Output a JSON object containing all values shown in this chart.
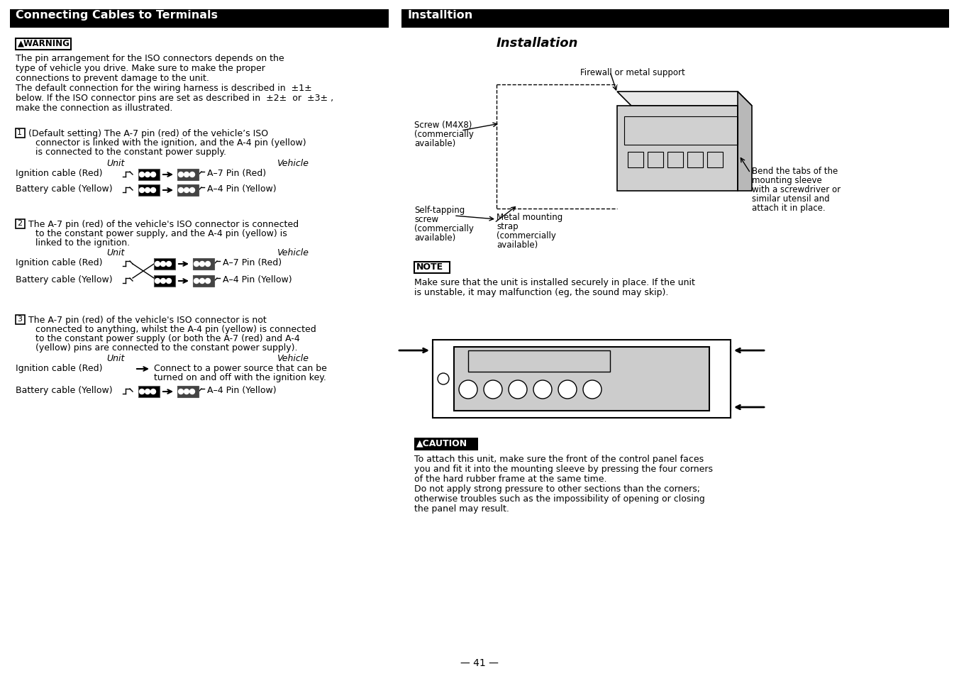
{
  "left_title": "Connecting Cables to Terminals",
  "right_title": "Installtion",
  "right_subtitle": "Installation",
  "warning_text_lines": [
    "The pin arrangement for the ISO connectors depends on the",
    "type of vehicle you drive. Make sure to make the proper",
    "connections to prevent damage to the unit.",
    "The default connection for the wiring harness is described in  ±1±",
    "below. If the ISO connector pins are set as described in  ±2±  or  ±3± ,",
    "make the connection as illustrated."
  ],
  "note_text": "Make sure that the unit is installed securely in place. If the unit\nis unstable, it may malfunction (eg, the sound may skip).",
  "caution_text": "To attach this unit, make sure the front of the control panel faces\nyou and fit it into the mounting sleeve by pressing the four corners\nof the hard rubber frame at the same time.\nDo not apply strong pressure to other sections than the corners;\notherwise troubles such as the impossibility of opening or closing\nthe panel may result.",
  "page_num": "— 41 —",
  "bg": "#ffffff",
  "black": "#000000"
}
